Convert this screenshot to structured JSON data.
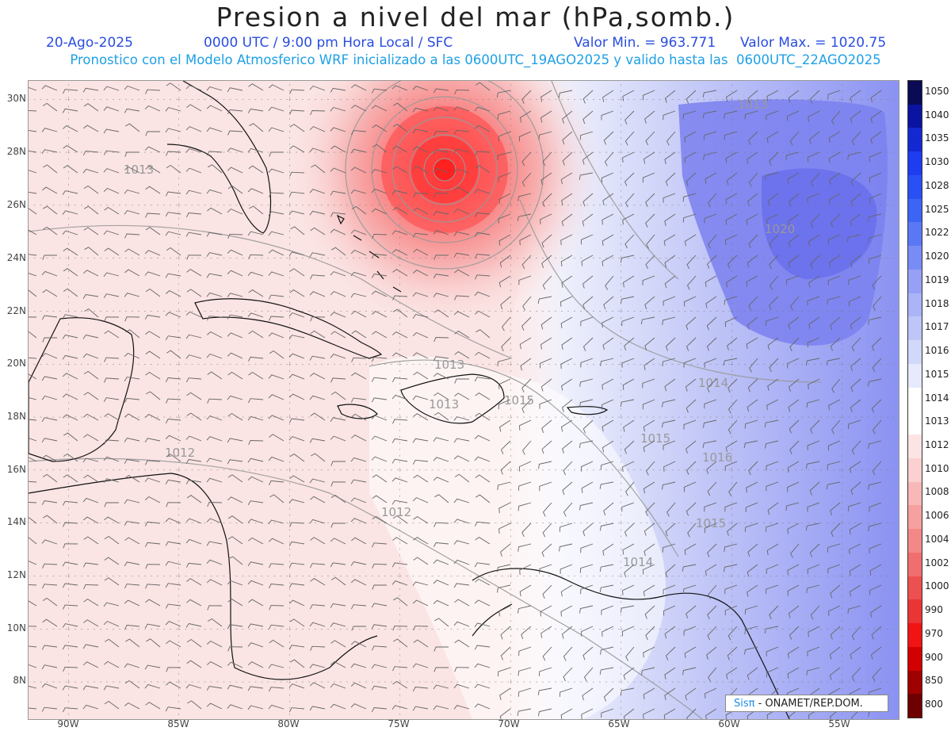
{
  "header": {
    "title": "Presion a nivel del mar (hPa,somb.)",
    "date": "20-Ago-2025",
    "time": "0000 UTC / 9:00 pm Hora Local / SFC",
    "valor_min": "Valor Min. = 963.771",
    "valor_max": "Valor Max. = 1020.75",
    "subtitle": "Pronostico con el Modelo Atmosferico WRF inicializado a las 0600UTC_19AGO2025 y valido hasta las  0600UTC_22AGO2025"
  },
  "map": {
    "lat_labels": [
      "30N",
      "28N",
      "26N",
      "24N",
      "22N",
      "20N",
      "18N",
      "16N",
      "14N",
      "12N",
      "10N",
      "8N"
    ],
    "lon_labels": [
      "90W",
      "85W",
      "80W",
      "75W",
      "70W",
      "65W",
      "60W",
      "55W"
    ],
    "contour_labels": [
      "1013",
      "1013",
      "1012",
      "1012",
      "1013",
      "1015",
      "1013",
      "1014",
      "1015",
      "1014",
      "1015",
      "1016",
      "1020"
    ],
    "credit_logo": "Sisπ",
    "credit_text": "- ONAMET/REP.DOM."
  },
  "colorbar": {
    "labels": [
      "1050",
      "1040",
      "1035",
      "1030",
      "1028",
      "1025",
      "1022",
      "1020",
      "1019",
      "1018",
      "1017",
      "1016",
      "1015",
      "1014",
      "1013",
      "1012",
      "1010",
      "1008",
      "1006",
      "1004",
      "1002",
      "1000",
      "990",
      "970",
      "900",
      "850",
      "800"
    ],
    "colors": [
      "#0a0a55",
      "#0a14a0",
      "#1428d2",
      "#1e3cf0",
      "#2850f5",
      "#3c64f5",
      "#5a78f5",
      "#788cf5",
      "#96a0f5",
      "#aab4f7",
      "#bec6f8",
      "#d2d8fa",
      "#e6eafc",
      "#ffffff",
      "#ffffff",
      "#fde4e4",
      "#fbd0d0",
      "#f8b8b8",
      "#f6a0a0",
      "#f38888",
      "#f06e6e",
      "#ec5050",
      "#ea3535",
      "#f01414",
      "#d20000",
      "#a00000",
      "#6e0000"
    ]
  },
  "colors": {
    "low_center": "#ff3434",
    "high_center": "#6f73ee",
    "background_tint": "#fbe4e4"
  }
}
